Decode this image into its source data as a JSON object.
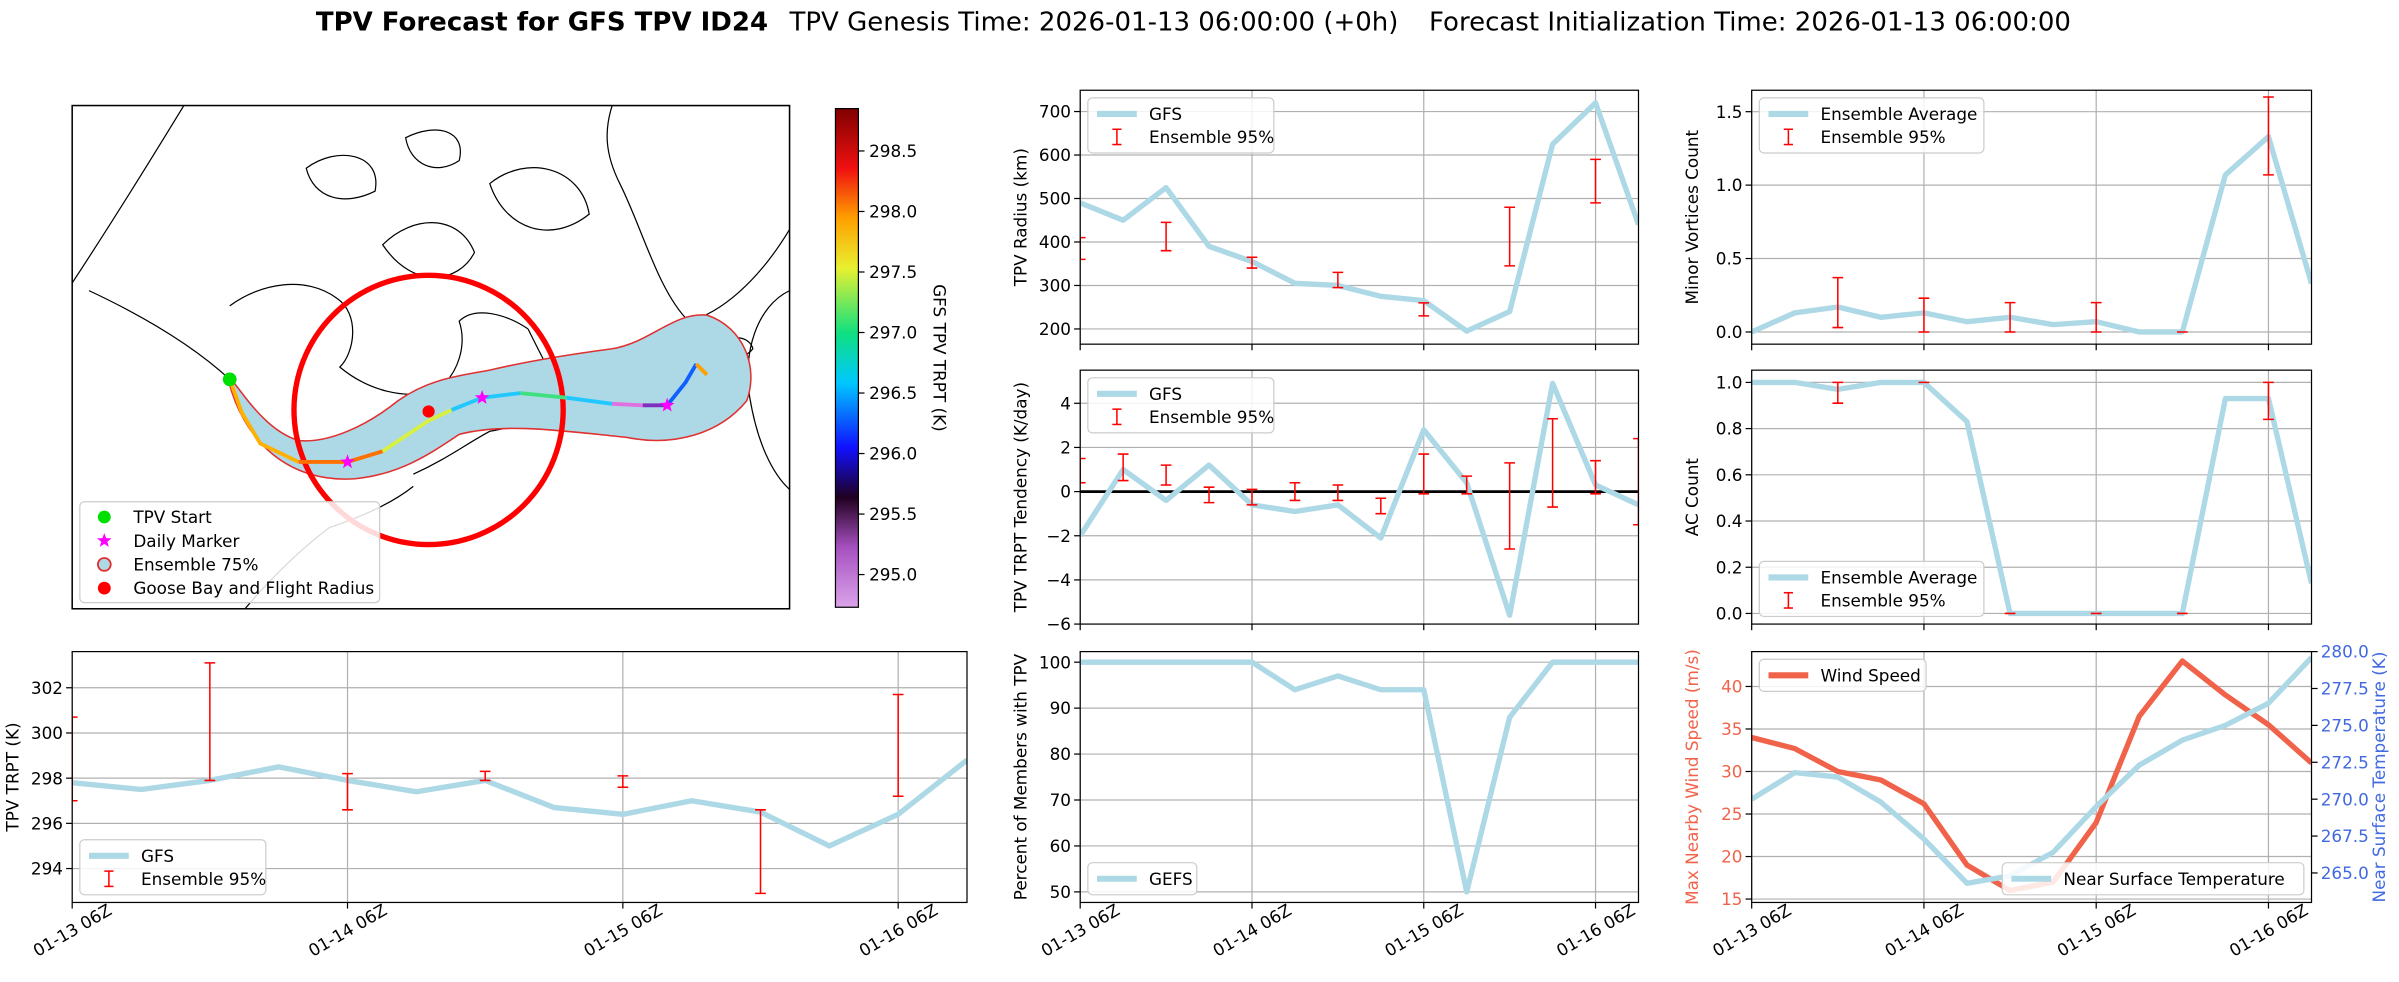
{
  "title": [
    "TPV Forecast for GFS TPV ID24",
    "TPV Genesis Time: 2026-01-13 06:00:00 (+0h)",
    "Forecast Initialization Time: 2026-01-13 06:00:00"
  ],
  "chart_data": [
    {
      "type": "map",
      "legend": [
        {
          "label": "TPV Start",
          "color": "#00e000",
          "marker": "circle"
        },
        {
          "label": "Daily Marker",
          "color": "#ff00ff",
          "marker": "star"
        },
        {
          "label": "Ensemble 75%",
          "color": "#add8e6",
          "edgecolor": "#e03030",
          "marker": "circle"
        },
        {
          "label": "Goose Bay and Flight Radius",
          "color": "#ff0000",
          "marker": "circle"
        }
      ],
      "colorbar": {
        "label": "GFS TPV TRPT (K)",
        "lim": [
          294.73,
          298.85
        ],
        "ticks": [
          {
            "value": 295,
            "label": "295.0"
          },
          {
            "value": 295.5,
            "label": "295.5"
          },
          {
            "value": 296,
            "label": "296.0"
          },
          {
            "value": 296.5,
            "label": "296.5"
          },
          {
            "value": 297,
            "label": "297.0"
          },
          {
            "value": 297.5,
            "label": "297.5"
          },
          {
            "value": 298,
            "label": "298.0"
          },
          {
            "value": 298.5,
            "label": "298.5"
          }
        ]
      }
    },
    {
      "type": "line",
      "ylabel": "TPV TRPT (K)",
      "x": [
        0,
        6,
        12,
        18,
        24,
        30,
        36,
        42,
        48,
        54,
        60,
        66,
        72,
        78
      ],
      "xlim": [
        0,
        78
      ],
      "xticks": [
        {
          "value": 0,
          "label": "01-13 06Z"
        },
        {
          "value": 24,
          "label": "01-14 06Z"
        },
        {
          "value": 48,
          "label": "01-15 06Z"
        },
        {
          "value": 72,
          "label": "01-16 06Z"
        }
      ],
      "ylim": [
        292.5,
        303.6
      ],
      "yticks": [
        294,
        296,
        298,
        300,
        302
      ],
      "grid": true,
      "legend": "lower left",
      "series": [
        {
          "name": "GFS",
          "color": "#add8e6",
          "values": [
            297.8,
            297.5,
            297.9,
            298.5,
            297.9,
            297.4,
            297.9,
            296.7,
            296.4,
            297.0,
            296.5,
            295.0,
            296.4,
            298.8
          ]
        }
      ],
      "errorbars": {
        "name": "Ensemble 95%",
        "color": "#ff0000",
        "x": [
          0,
          12,
          24,
          36,
          48,
          60,
          72
        ],
        "low": [
          297.0,
          297.9,
          296.6,
          297.9,
          297.6,
          292.9,
          297.2
        ],
        "high": [
          300.7,
          303.1,
          298.2,
          298.3,
          298.1,
          296.6,
          301.7
        ]
      }
    },
    {
      "type": "line",
      "ylabel": "TPV Radius (km)",
      "x": [
        0,
        6,
        12,
        18,
        24,
        30,
        36,
        42,
        48,
        54,
        60,
        66,
        72,
        78
      ],
      "xlim": [
        0,
        78
      ],
      "xticks": [
        0,
        24,
        48,
        72
      ],
      "ylim": [
        165,
        749
      ],
      "yticks": [
        200,
        300,
        400,
        500,
        600,
        700
      ],
      "grid": true,
      "legend": "upper left",
      "series": [
        {
          "name": "GFS",
          "color": "#add8e6",
          "values": [
            490,
            450,
            525,
            390,
            355,
            305,
            300,
            275,
            265,
            195,
            240,
            625,
            720,
            440
          ]
        }
      ],
      "errorbars": {
        "name": "Ensemble 95%",
        "color": "#ff0000",
        "x": [
          0,
          12,
          24,
          36,
          48,
          60,
          72
        ],
        "low": [
          360,
          380,
          340,
          295,
          230,
          345,
          490
        ],
        "high": [
          410,
          445,
          365,
          330,
          260,
          480,
          590
        ]
      }
    },
    {
      "type": "line",
      "ylabel": "TPV TRPT Tendency (K/day)",
      "x": [
        0,
        6,
        12,
        18,
        24,
        30,
        36,
        42,
        48,
        54,
        60,
        66,
        72,
        78
      ],
      "xlim": [
        0,
        78
      ],
      "xticks": [
        0,
        24,
        48,
        72
      ],
      "ylim": [
        -6,
        5.5
      ],
      "yticks": [
        {
          "value": -6,
          "label": "−6"
        },
        {
          "value": -4,
          "label": "−4"
        },
        {
          "value": -2,
          "label": "−2"
        },
        0,
        2,
        4
      ],
      "grid": true,
      "hline": 0,
      "legend": "upper left",
      "series": [
        {
          "name": "GFS",
          "color": "#add8e6",
          "values": [
            -2.0,
            1.0,
            -0.4,
            1.2,
            -0.6,
            -0.9,
            -0.6,
            -2.1,
            2.8,
            0.4,
            -5.6,
            4.9,
            0.3,
            -0.6
          ]
        }
      ],
      "errorbars": {
        "name": "Ensemble 95%",
        "color": "#ff0000",
        "x": [
          0,
          6,
          12,
          18,
          24,
          30,
          36,
          42,
          48,
          54,
          60,
          66,
          72,
          78
        ],
        "low": [
          0.4,
          0.5,
          0.3,
          -0.5,
          -0.6,
          -0.4,
          -0.4,
          -1.0,
          -0.1,
          -0.1,
          -2.6,
          -0.7,
          -0.1,
          -1.5
        ],
        "high": [
          1.5,
          1.7,
          1.2,
          0.2,
          0.1,
          0.4,
          0.3,
          -0.3,
          1.7,
          0.7,
          1.3,
          3.3,
          1.4,
          2.4
        ]
      }
    },
    {
      "type": "line",
      "ylabel": "Percent of Members with TPV",
      "x": [
        0,
        6,
        12,
        18,
        24,
        30,
        36,
        42,
        48,
        54,
        60,
        66,
        72,
        78
      ],
      "xlim": [
        0,
        78
      ],
      "xticks": [
        {
          "value": 0,
          "label": "01-13 06Z"
        },
        {
          "value": 24,
          "label": "01-14 06Z"
        },
        {
          "value": 48,
          "label": "01-15 06Z"
        },
        {
          "value": 72,
          "label": "01-16 06Z"
        }
      ],
      "ylim": [
        47.7,
        102.3
      ],
      "yticks": [
        50,
        60,
        70,
        80,
        90,
        100
      ],
      "grid": true,
      "legend": "lower left",
      "series": [
        {
          "name": "GEFS",
          "color": "#add8e6",
          "values": [
            100,
            100,
            100,
            100,
            100,
            94,
            97,
            94,
            94,
            50,
            88,
            100,
            100,
            100
          ]
        }
      ]
    },
    {
      "type": "line",
      "ylabel": "Minor Vortices Count",
      "x": [
        0,
        6,
        12,
        18,
        24,
        30,
        36,
        42,
        48,
        54,
        60,
        66,
        72,
        78
      ],
      "xlim": [
        0,
        78
      ],
      "xticks": [
        0,
        24,
        48,
        72
      ],
      "ylim": [
        -0.083,
        1.646
      ],
      "yticks": [
        {
          "value": 0,
          "label": "0.0"
        },
        {
          "value": 0.5,
          "label": "0.5"
        },
        {
          "value": 1,
          "label": "1.0"
        },
        {
          "value": 1.5,
          "label": "1.5"
        }
      ],
      "grid": true,
      "legend": "upper left",
      "series": [
        {
          "name": "Ensemble Average",
          "color": "#add8e6",
          "values": [
            0,
            0.13,
            0.17,
            0.1,
            0.13,
            0.07,
            0.1,
            0.05,
            0.07,
            0,
            0,
            1.07,
            1.33,
            0.33
          ]
        }
      ],
      "errorbars": {
        "name": "Ensemble 95%",
        "color": "#ff0000",
        "x": [
          12,
          24,
          36,
          48,
          60,
          72
        ],
        "low": [
          0.03,
          0,
          0,
          0,
          0,
          1.07
        ],
        "high": [
          0.37,
          0.23,
          0.2,
          0.2,
          0,
          1.6
        ]
      }
    },
    {
      "type": "line",
      "ylabel": "AC Count",
      "x": [
        0,
        6,
        12,
        18,
        24,
        30,
        36,
        42,
        48,
        54,
        60,
        66,
        72,
        78
      ],
      "xlim": [
        0,
        78
      ],
      "xticks": [
        0,
        24,
        48,
        72
      ],
      "ylim": [
        -0.046,
        1.053
      ],
      "yticks": [
        {
          "value": 0,
          "label": "0.0"
        },
        {
          "value": 0.2,
          "label": "0.2"
        },
        {
          "value": 0.4,
          "label": "0.4"
        },
        {
          "value": 0.6,
          "label": "0.6"
        },
        {
          "value": 0.8,
          "label": "0.8"
        },
        {
          "value": 1,
          "label": "1.0"
        }
      ],
      "grid": true,
      "legend": "lower left",
      "series": [
        {
          "name": "Ensemble Average",
          "color": "#add8e6",
          "values": [
            1,
            1,
            0.97,
            1,
            1,
            0.83,
            0,
            0,
            0,
            0,
            0,
            0.93,
            0.93,
            0.13
          ]
        }
      ],
      "errorbars": {
        "name": "Ensemble 95%",
        "color": "#ff0000",
        "x": [
          12,
          24,
          36,
          48,
          60,
          72
        ],
        "low": [
          0.91,
          1,
          0,
          0,
          0,
          0.84
        ],
        "high": [
          1,
          1,
          0,
          0,
          0,
          1
        ]
      }
    },
    {
      "type": "line",
      "ylabel": "Max Nearby Wind Speed (m/s)",
      "ylabel_color": "#f0634a",
      "y2label": "Near Surface Temperature (K)",
      "y2label_color": "#4169e1",
      "x": [
        0,
        6,
        12,
        18,
        24,
        30,
        36,
        42,
        48,
        54,
        60,
        66,
        72,
        78
      ],
      "xlim": [
        0,
        78
      ],
      "xticks": [
        {
          "value": 0,
          "label": "01-13 06Z"
        },
        {
          "value": 24,
          "label": "01-14 06Z"
        },
        {
          "value": 48,
          "label": "01-15 06Z"
        },
        {
          "value": 72,
          "label": "01-16 06Z"
        }
      ],
      "ylim": [
        14.6,
        44.1
      ],
      "yticks": [
        15,
        20,
        25,
        30,
        35,
        40
      ],
      "y2lim": [
        263.0,
        280.0
      ],
      "y2ticks": [
        {
          "value": 265,
          "label": "265.0"
        },
        {
          "value": 267.5,
          "label": "267.5"
        },
        {
          "value": 270,
          "label": "270.0"
        },
        {
          "value": 272.5,
          "label": "272.5"
        },
        {
          "value": 275,
          "label": "275.0"
        },
        {
          "value": 277.5,
          "label": "277.5"
        },
        {
          "value": 280,
          "label": "280.0"
        }
      ],
      "grid": true,
      "legend": "upper left",
      "legend2": "lower right",
      "series": [
        {
          "name": "Wind Speed",
          "color": "#f0634a",
          "values": [
            34,
            32.7,
            30,
            29,
            26.2,
            19,
            16,
            17,
            24,
            36.5,
            43,
            39,
            35.5,
            31
          ]
        },
        {
          "name": "Near Surface Temperature",
          "color": "#add8e6",
          "axis": "y2",
          "values": [
            270.0,
            271.8,
            271.5,
            269.8,
            267.3,
            264.3,
            264.8,
            266.4,
            269.5,
            272.3,
            274.0,
            275.0,
            276.5,
            279.6
          ]
        }
      ]
    }
  ]
}
